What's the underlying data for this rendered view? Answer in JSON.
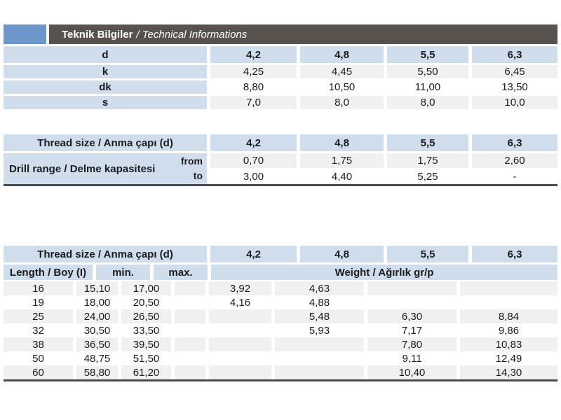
{
  "header": {
    "title_bold": "Teknik Bilgiler",
    "title_italic": "/ Technical Informations"
  },
  "colors": {
    "accent_blue": "#6d97cc",
    "title_bar": "#57524e",
    "cell_blue": "#cfdded",
    "stripe_gray": "#f0f0f0",
    "rule_dark": "#4a4a4a"
  },
  "dimensions_table": {
    "rows": [
      {
        "label": "d",
        "values": [
          "4,2",
          "4,8",
          "5,5",
          "6,3"
        ]
      },
      {
        "label": "k",
        "values": [
          "4,25",
          "4,45",
          "5,50",
          "6,45"
        ]
      },
      {
        "label": "dk",
        "values": [
          "8,80",
          "10,50",
          "11,00",
          "13,50"
        ]
      },
      {
        "label": "s",
        "values": [
          "7,0",
          "8,0",
          "8,0",
          "10,0"
        ]
      }
    ]
  },
  "drill_table": {
    "header_label": "Thread size / Anma çapı (d)",
    "header_values": [
      "4,2",
      "4,8",
      "5,5",
      "6,3"
    ],
    "row_label": "Drill range / Delme kapasitesi",
    "sub_rows": [
      {
        "label": "from",
        "values": [
          "0,70",
          "1,75",
          "1,75",
          "2,60"
        ]
      },
      {
        "label": "to",
        "values": [
          "3,00",
          "4,40",
          "5,25",
          "-"
        ]
      }
    ]
  },
  "weight_table": {
    "header_label": "Thread size / Anma çapı (d)",
    "header_values": [
      "4,2",
      "4,8",
      "5,5",
      "6,3"
    ],
    "col_headers": {
      "length": "Length / Boy (I)",
      "min": "min.",
      "max": "max.",
      "weight": "Weight / Ağırlık gr/p"
    },
    "rows": [
      {
        "length": "16",
        "min": "15,10",
        "max": "17,00",
        "weights": [
          "3,92",
          "4,63",
          "",
          ""
        ]
      },
      {
        "length": "19",
        "min": "18,00",
        "max": "20,50",
        "weights": [
          "4,16",
          "4,88",
          "",
          ""
        ]
      },
      {
        "length": "25",
        "min": "24,00",
        "max": "26,50",
        "weights": [
          "",
          "5,48",
          "6,30",
          "8,84"
        ]
      },
      {
        "length": "32",
        "min": "30,50",
        "max": "33,50",
        "weights": [
          "",
          "5,93",
          "7,17",
          "9,86"
        ]
      },
      {
        "length": "38",
        "min": "36,50",
        "max": "39,50",
        "weights": [
          "",
          "",
          "7,80",
          "10,83"
        ]
      },
      {
        "length": "50",
        "min": "48,75",
        "max": "51,50",
        "weights": [
          "",
          "",
          "9,11",
          "12,49"
        ]
      },
      {
        "length": "60",
        "min": "58,80",
        "max": "61,20",
        "weights": [
          "",
          "",
          "10,40",
          "14,30"
        ]
      }
    ]
  }
}
